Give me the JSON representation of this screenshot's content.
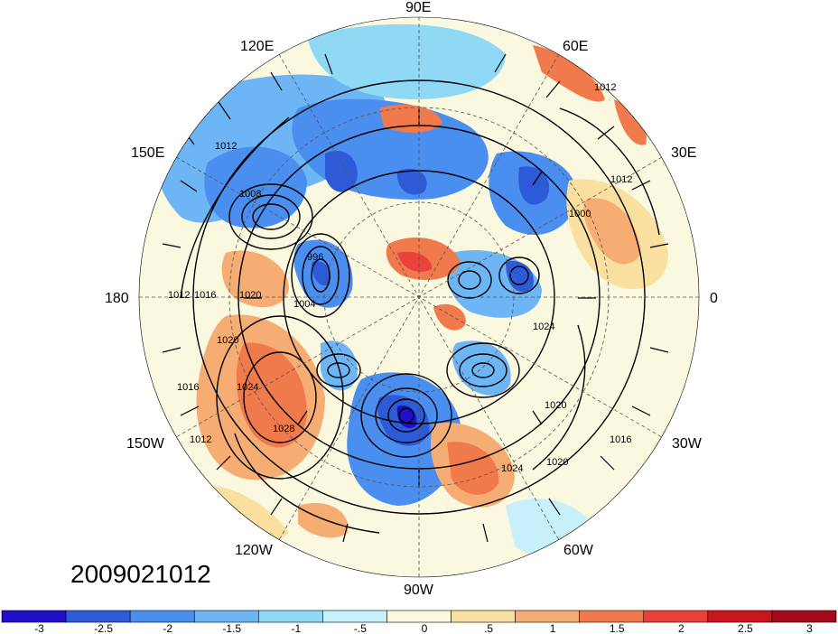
{
  "map": {
    "longitude_labels": [
      {
        "id": "lon-90e",
        "text": "90E"
      },
      {
        "id": "lon-60e",
        "text": "60E"
      },
      {
        "id": "lon-120e",
        "text": "120E"
      },
      {
        "id": "lon-150e",
        "text": "150E"
      },
      {
        "id": "lon-30e",
        "text": "30E"
      },
      {
        "id": "lon-180",
        "text": "180"
      },
      {
        "id": "lon-0",
        "text": "0"
      },
      {
        "id": "lon-150w",
        "text": "150W"
      },
      {
        "id": "lon-30w",
        "text": "30W"
      },
      {
        "id": "lon-120w",
        "text": "120W"
      },
      {
        "id": "lon-60w",
        "text": "60W"
      },
      {
        "id": "lon-90w",
        "text": "90W"
      }
    ],
    "contour_labels": [
      {
        "id": "c-1012-ne",
        "text": "1012"
      },
      {
        "id": "c-1012-e",
        "text": "1012"
      },
      {
        "id": "c-1000-e",
        "text": "1000"
      },
      {
        "id": "c-1012-nw",
        "text": "1012"
      },
      {
        "id": "c-1008-nw",
        "text": "1008"
      },
      {
        "id": "c-1012-w",
        "text": "1012"
      },
      {
        "id": "c-1016-w",
        "text": "1016"
      },
      {
        "id": "c-1020-w",
        "text": "1020"
      },
      {
        "id": "c-1020-sw",
        "text": "1020"
      },
      {
        "id": "c-1024-sw",
        "text": "1024"
      },
      {
        "id": "c-1028-sw",
        "text": "1028"
      },
      {
        "id": "c-1016-sw2",
        "text": "1016"
      },
      {
        "id": "c-1012-sw",
        "text": "1012"
      },
      {
        "id": "c-1024-s",
        "text": "1024"
      },
      {
        "id": "c-1020-se",
        "text": "1020"
      },
      {
        "id": "c-1016-se",
        "text": "1016"
      },
      {
        "id": "c-1020-e2",
        "text": "1020"
      },
      {
        "id": "c-1024-e",
        "text": "1024"
      },
      {
        "id": "c-996-c",
        "text": "996"
      },
      {
        "id": "c-1004-c",
        "text": "1004"
      }
    ],
    "date_stamp": "2009021012"
  },
  "colorbar": {
    "colors": [
      "#1f0fc7",
      "#2d5bd8",
      "#4a8ff0",
      "#6db5f5",
      "#8fd9f5",
      "#c8f0fa",
      "#fbf8e0",
      "#f9dfa0",
      "#f6ad74",
      "#f07a4c",
      "#e8423a",
      "#c8151e",
      "#a50a1a"
    ],
    "tick_labels": [
      "-3",
      "-2.5",
      "-2",
      "-1.5",
      "-1",
      "-.5",
      "0",
      ".5",
      "1",
      "1.5",
      "2",
      "2.5",
      "3"
    ]
  }
}
